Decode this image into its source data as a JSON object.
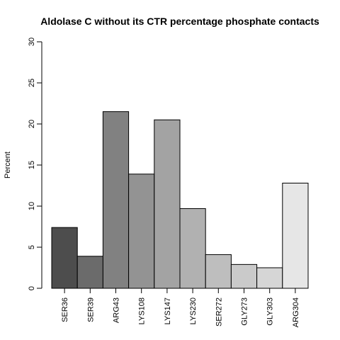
{
  "chart_data": {
    "type": "bar",
    "title": "Aldolase C without its CTR percentage phosphate contacts",
    "xlabel": "",
    "ylabel": "Percent",
    "ylim": [
      0,
      30
    ],
    "yticks": [
      0,
      5,
      10,
      15,
      20,
      25,
      30
    ],
    "grid": false,
    "categories": [
      "SER36",
      "SER39",
      "ARG43",
      "LYS108",
      "LYS147",
      "LYS230",
      "SER272",
      "GLY273",
      "GLY303",
      "ARG304"
    ],
    "values": [
      7.4,
      3.9,
      21.5,
      13.9,
      20.5,
      9.7,
      4.1,
      2.9,
      2.5,
      12.8
    ],
    "colors": [
      "#4d4d4d",
      "#6b6b6b",
      "#818181",
      "#939393",
      "#a3a3a3",
      "#b1b1b1",
      "#bebebe",
      "#cacaca",
      "#d6d6d6",
      "#e6e6e6"
    ]
  }
}
